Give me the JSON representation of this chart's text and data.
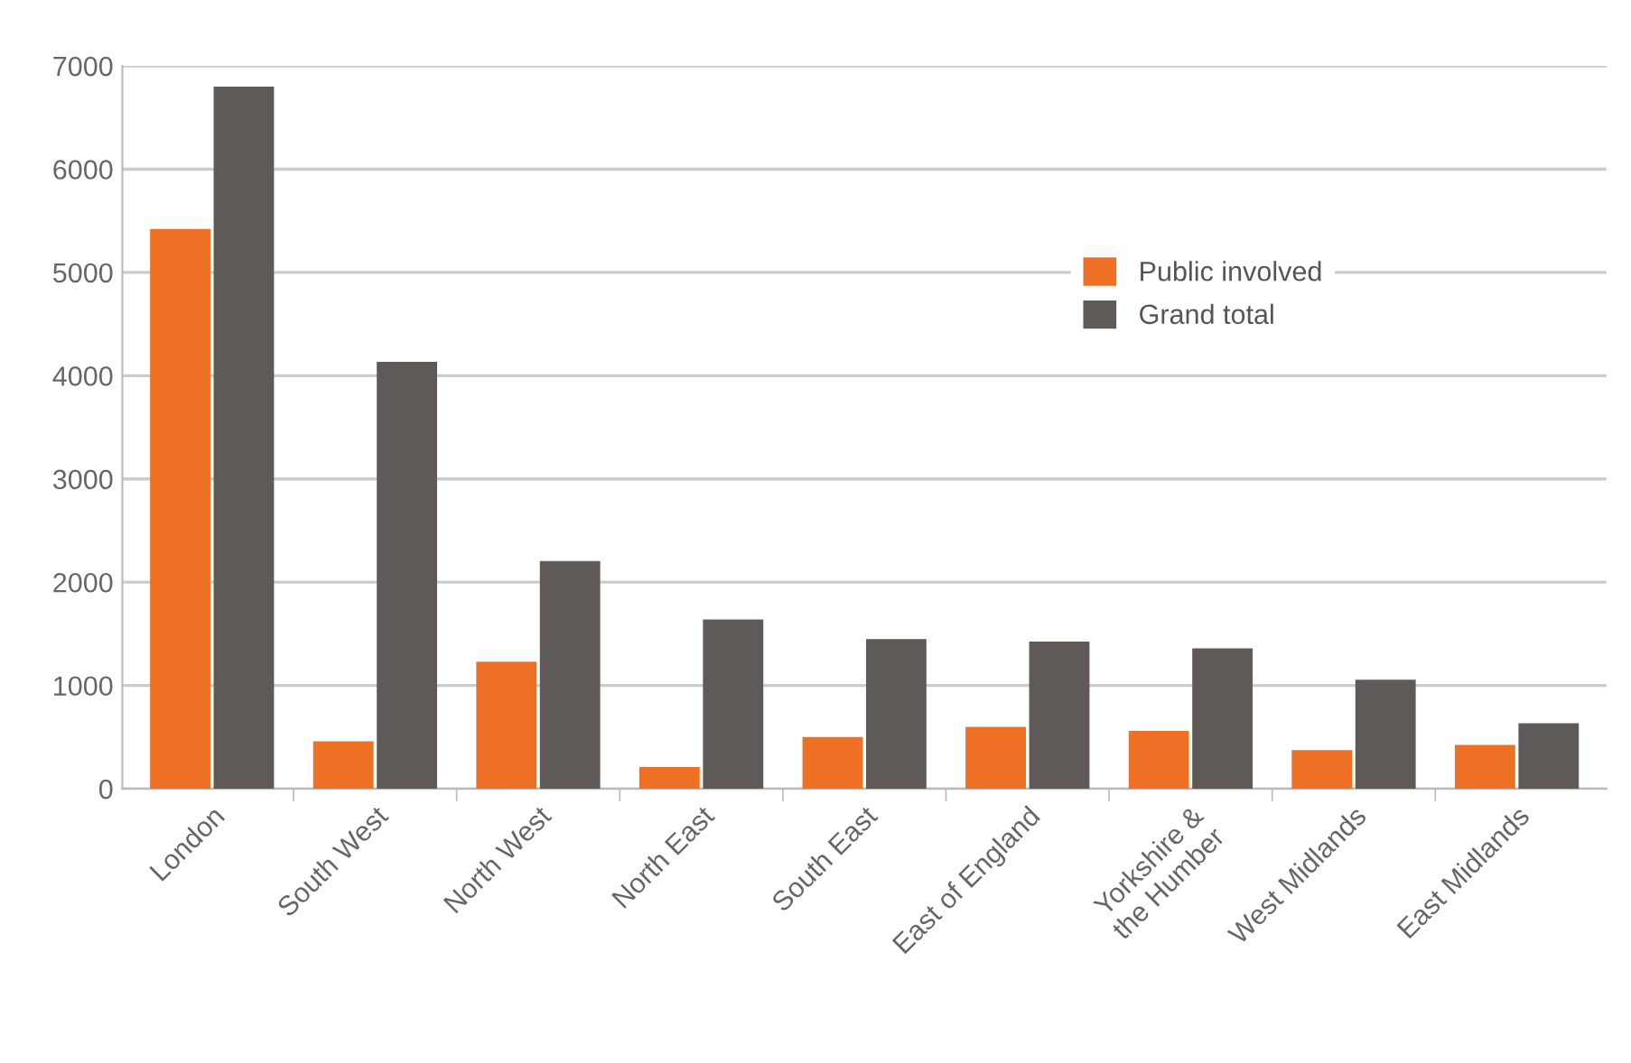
{
  "chart_data": {
    "type": "bar",
    "categories": [
      "London",
      "South West",
      "North West",
      "North East",
      "South East",
      "East of England",
      "Yorkshire &\nthe Humber",
      "West Midlands",
      "East Midlands"
    ],
    "series": [
      {
        "name": "Public involved",
        "color": "#ee7024",
        "values": [
          5420,
          460,
          1230,
          210,
          500,
          600,
          560,
          375,
          425
        ]
      },
      {
        "name": "Grand total",
        "color": "#5f5a58",
        "values": [
          6800,
          4135,
          2205,
          1640,
          1450,
          1425,
          1360,
          1055,
          635
        ]
      }
    ],
    "ylim": [
      0,
      7000
    ],
    "yticks": [
      0,
      1000,
      2000,
      3000,
      4000,
      5000,
      6000,
      7000
    ],
    "grid": "y",
    "legend": "top right"
  }
}
